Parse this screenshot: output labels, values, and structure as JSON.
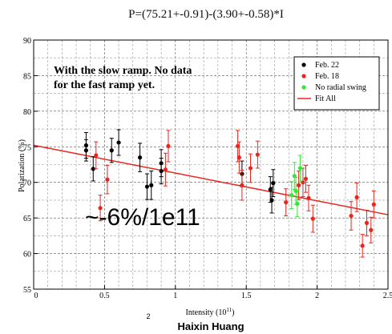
{
  "header": {
    "equation": "P=(75.21+-0.91)-(3.90+-0.58)*I"
  },
  "footer": {
    "page_number": "2",
    "author": "Haixin Huang"
  },
  "chart_data": {
    "type": "scatter",
    "ylabel": "Polarization (%)",
    "xlabel_main": "Intensity (10",
    "xlabel_exp": "11",
    "xlabel_close": ")",
    "xlim": [
      0,
      2.5
    ],
    "ylim": [
      55,
      90
    ],
    "grid": true,
    "x_ticks": [
      {
        "value": 0,
        "label": "0"
      },
      {
        "value": 0.5,
        "label": "0.5"
      },
      {
        "value": 1,
        "label": "1"
      },
      {
        "value": 1.5,
        "label": "1.5"
      },
      {
        "value": 2,
        "label": "2"
      },
      {
        "value": 2.5,
        "label": "2.5"
      }
    ],
    "y_ticks": [
      {
        "value": 55,
        "label": "55"
      },
      {
        "value": 60,
        "label": "60"
      },
      {
        "value": 65,
        "label": "65"
      },
      {
        "value": 70,
        "label": "70"
      },
      {
        "value": 75,
        "label": "75"
      },
      {
        "value": 80,
        "label": "80"
      },
      {
        "value": 85,
        "label": "85"
      },
      {
        "value": 90,
        "label": "90"
      }
    ],
    "annotation_lines": [
      "With the slow ramp. No data",
      "for the fast ramp yet."
    ],
    "slope_annotation": "~-6%/1e11",
    "legend_position": "top-right",
    "colors": {
      "feb22": "#000000",
      "feb18": "#e8261e",
      "no_radial": "#33e833",
      "fit": "#e8261e"
    },
    "fit": {
      "name": "Fit All",
      "intercept": 75.21,
      "slope": -3.9,
      "x_range": [
        0,
        2.5
      ]
    },
    "series": [
      {
        "name": "Feb. 22",
        "color_key": "feb22",
        "points": [
          {
            "x": 0.37,
            "y": 75.2,
            "err": 1.8
          },
          {
            "x": 0.37,
            "y": 74.5,
            "err": 1.5
          },
          {
            "x": 0.42,
            "y": 71.9,
            "err": 1.7
          },
          {
            "x": 0.55,
            "y": 74.5,
            "err": 1.7
          },
          {
            "x": 0.6,
            "y": 75.6,
            "err": 1.8
          },
          {
            "x": 0.75,
            "y": 73.5,
            "err": 2.0
          },
          {
            "x": 0.8,
            "y": 69.4,
            "err": 1.8
          },
          {
            "x": 0.83,
            "y": 69.6,
            "err": 2.0
          },
          {
            "x": 0.9,
            "y": 72.7,
            "err": 1.9
          },
          {
            "x": 0.9,
            "y": 71.6,
            "err": 1.8
          },
          {
            "x": 1.47,
            "y": 71.2,
            "err": 1.8
          },
          {
            "x": 1.67,
            "y": 69.0,
            "err": 1.8
          },
          {
            "x": 1.68,
            "y": 67.5,
            "err": 1.8
          },
          {
            "x": 1.69,
            "y": 69.9,
            "err": 1.9
          }
        ]
      },
      {
        "name": "Feb. 18",
        "color_key": "feb18",
        "points": [
          {
            "x": 0.44,
            "y": 73.8,
            "err": 1.9
          },
          {
            "x": 0.47,
            "y": 66.4,
            "err": 1.8
          },
          {
            "x": 0.52,
            "y": 70.4,
            "err": 2.0
          },
          {
            "x": 0.93,
            "y": 71.8,
            "err": 2.3
          },
          {
            "x": 0.95,
            "y": 75.1,
            "err": 2.2
          },
          {
            "x": 1.44,
            "y": 75.1,
            "err": 2.2
          },
          {
            "x": 1.45,
            "y": 73.5,
            "err": 2.2
          },
          {
            "x": 1.47,
            "y": 69.6,
            "err": 2.1
          },
          {
            "x": 1.53,
            "y": 72.0,
            "err": 2.0
          },
          {
            "x": 1.58,
            "y": 73.9,
            "err": 1.9
          },
          {
            "x": 1.78,
            "y": 67.2,
            "err": 1.9
          },
          {
            "x": 1.87,
            "y": 69.6,
            "err": 2.0
          },
          {
            "x": 1.9,
            "y": 70.0,
            "err": 2.0
          },
          {
            "x": 1.92,
            "y": 70.5,
            "err": 1.9
          },
          {
            "x": 1.94,
            "y": 67.8,
            "err": 1.8
          },
          {
            "x": 1.97,
            "y": 64.9,
            "err": 1.9
          },
          {
            "x": 2.24,
            "y": 65.3,
            "err": 2.0
          },
          {
            "x": 2.28,
            "y": 67.9,
            "err": 2.0
          },
          {
            "x": 2.32,
            "y": 61.1,
            "err": 1.6
          },
          {
            "x": 2.35,
            "y": 64.3,
            "err": 1.8
          },
          {
            "x": 2.38,
            "y": 63.3,
            "err": 1.8
          },
          {
            "x": 2.4,
            "y": 66.9,
            "err": 1.9
          }
        ]
      },
      {
        "name": "No radial swing",
        "color_key": "no_radial",
        "points": [
          {
            "x": 1.82,
            "y": 68.2,
            "err": 1.9
          },
          {
            "x": 1.84,
            "y": 70.9,
            "err": 1.9
          },
          {
            "x": 1.85,
            "y": 68.8,
            "err": 1.9
          },
          {
            "x": 1.86,
            "y": 67.0,
            "err": 1.8
          },
          {
            "x": 1.88,
            "y": 72.0,
            "err": 1.8
          }
        ]
      }
    ]
  }
}
